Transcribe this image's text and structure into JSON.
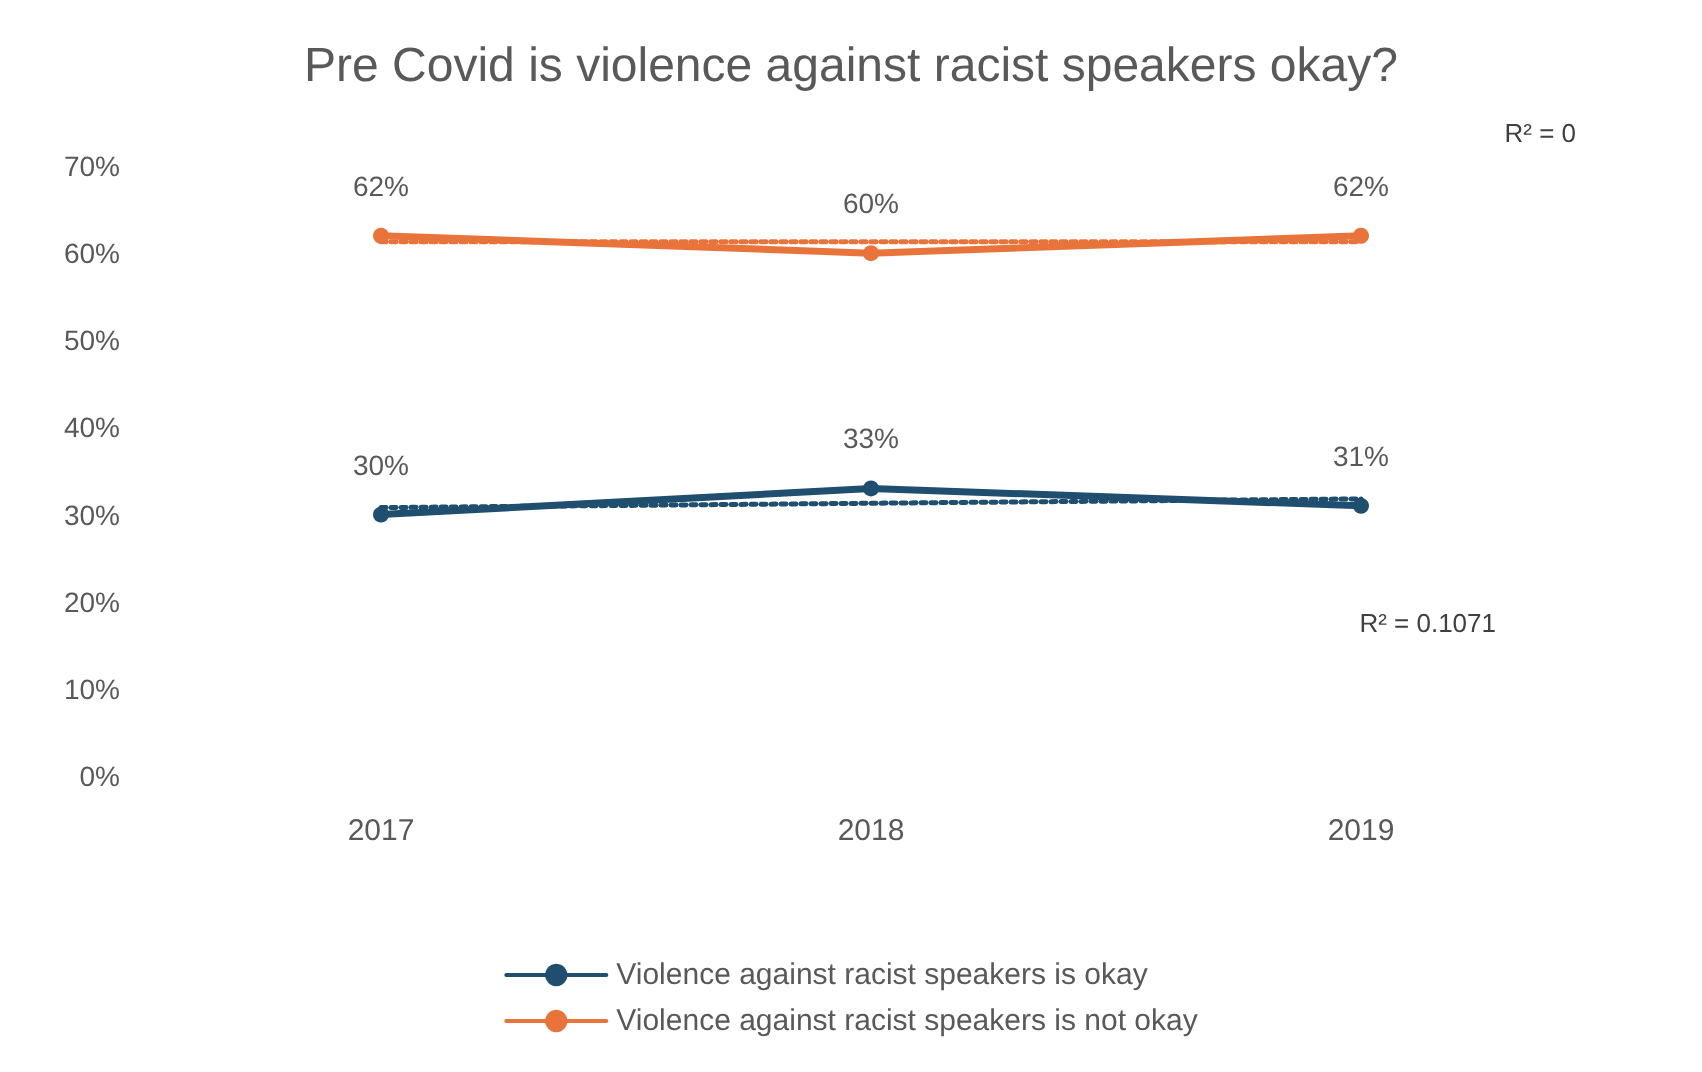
{
  "chart_data": {
    "type": "line",
    "title": "Pre Covid is violence against racist speakers okay?",
    "categories": [
      "2017",
      "2018",
      "2019"
    ],
    "series": [
      {
        "name": "Violence against racist speakers is okay",
        "color": "#1f4e6e",
        "values": [
          30,
          33,
          31
        ],
        "value_labels": [
          "30%",
          "33%",
          "31%"
        ]
      },
      {
        "name": "Violence against racist speakers is not okay",
        "color": "#e8743b",
        "values": [
          62,
          60,
          62
        ],
        "value_labels": [
          "62%",
          "60%",
          "62%"
        ]
      },
      {
        "type": "line",
        "color": "#1f4e6e",
        "values": [
          30.8,
          31.3,
          31.8
        ],
        "line_style": "dotted",
        "marker": "none"
      },
      {
        "type": "line",
        "color": "#e8743b",
        "values": [
          61.3,
          61.3,
          61.3
        ],
        "line_style": "dotted",
        "marker": "none"
      }
    ],
    "ylim": [
      0,
      70
    ],
    "yticks": [
      {
        "value": 0,
        "label": "0%"
      },
      {
        "value": 10,
        "label": "10%"
      },
      {
        "value": 20,
        "label": "20%"
      },
      {
        "value": 30,
        "label": "30%"
      },
      {
        "value": 40,
        "label": "40%"
      },
      {
        "value": 50,
        "label": "50%"
      },
      {
        "value": 60,
        "label": "60%"
      },
      {
        "value": 70,
        "label": "70%"
      }
    ],
    "annotations": [
      "R² = 0",
      "R² = 0.1071"
    ],
    "grid": false,
    "legend": "bottom",
    "marker": "circle",
    "line_style": "solid"
  }
}
